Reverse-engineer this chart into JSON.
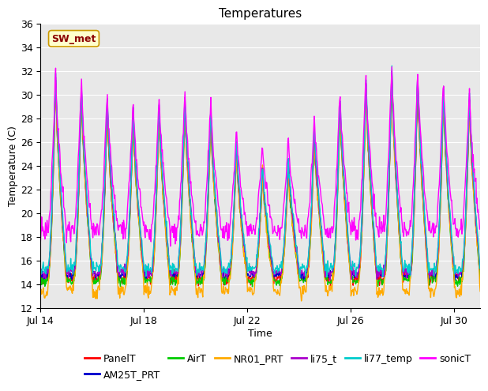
{
  "title": "Temperatures",
  "xlabel": "Time",
  "ylabel": "Temperature (C)",
  "ylim": [
    12,
    36
  ],
  "yticks": [
    12,
    14,
    16,
    18,
    20,
    22,
    24,
    26,
    28,
    30,
    32,
    34,
    36
  ],
  "xtick_positions": [
    0,
    4,
    8,
    12,
    16
  ],
  "xtick_labels": [
    "Jul 14",
    "Jul 18",
    "Jul 22",
    "Jul 26",
    "Jul 30"
  ],
  "annotation_text": "SW_met",
  "fig_bg_color": "#ffffff",
  "plot_bg_color": "#e8e8e8",
  "grid_color": "#ffffff",
  "series_colors": {
    "PanelT": "#ff0000",
    "AM25T_PRT": "#0000cc",
    "AirT": "#00cc00",
    "NR01_PRT": "#ffaa00",
    "li75_t": "#aa00cc",
    "li77_temp": "#00cccc",
    "sonicT": "#ff00ff"
  },
  "legend_order": [
    "PanelT",
    "AM25T_PRT",
    "AirT",
    "NR01_PRT",
    "li75_t",
    "li77_temp",
    "sonicT"
  ],
  "title_fontsize": 11,
  "axis_label_fontsize": 9,
  "tick_fontsize": 9,
  "legend_fontsize": 9,
  "linewidth": 1.0
}
